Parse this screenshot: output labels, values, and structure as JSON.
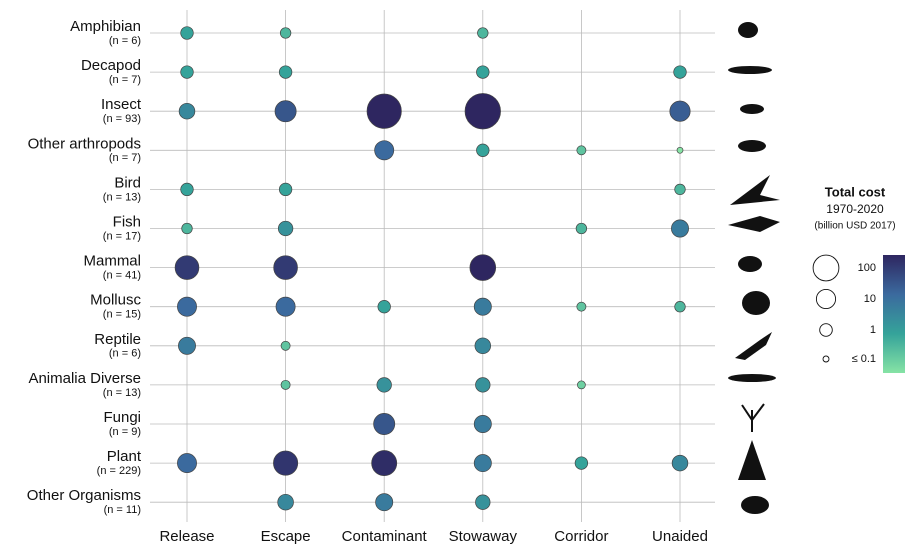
{
  "chart_data": {
    "type": "bubble-grid",
    "categories": [
      "Amphibian",
      "Decapod",
      "Insect",
      "Other arthropods",
      "Bird",
      "Fish",
      "Mammal",
      "Mollusc",
      "Reptile",
      "Animalia Diverse",
      "Fungi",
      "Plant",
      "Other Organisms"
    ],
    "category_notes": [
      "(n = 6)",
      "(n = 7)",
      "(n = 93)",
      "(n = 7)",
      "(n = 13)",
      "(n = 17)",
      "(n = 41)",
      "(n = 15)",
      "(n = 6)",
      "(n = 13)",
      "(n = 9)",
      "(n = 229)",
      "(n = 11)"
    ],
    "x": [
      "Release",
      "Escape",
      "Contaminant",
      "Stowaway",
      "Corridor",
      "Unaided"
    ],
    "values": [
      [
        1,
        0.5,
        null,
        0.5,
        null,
        null
      ],
      [
        1,
        1,
        null,
        1,
        null,
        1
      ],
      [
        3,
        20,
        2000,
        3000,
        null,
        15
      ],
      [
        null,
        null,
        10,
        1,
        0.3,
        0.1
      ],
      [
        1,
        1,
        null,
        null,
        null,
        0.5
      ],
      [
        0.5,
        2,
        null,
        null,
        0.5,
        5
      ],
      [
        50,
        50,
        null,
        100,
        null,
        null
      ],
      [
        10,
        10,
        1,
        5,
        0.3,
        0.5
      ],
      [
        5,
        0.3,
        null,
        3,
        null,
        null
      ],
      [
        null,
        0.3,
        2,
        2,
        0.2,
        null
      ],
      [
        null,
        null,
        20,
        5,
        null,
        null
      ],
      [
        10,
        60,
        80,
        5,
        1,
        3
      ],
      [
        null,
        3,
        5,
        2,
        null,
        null
      ]
    ],
    "legend_title": "Total cost",
    "legend_subtitle": "1970-2020",
    "legend_unit": "(billion USD 2017)",
    "size_legend": [
      100,
      10,
      1,
      {
        "value": 0.1,
        "label": "≤ 0.1"
      }
    ],
    "colorscale": [
      "#86e3a5",
      "#35a39a",
      "#3b6a9e",
      "#2e2660"
    ],
    "grid": true
  }
}
